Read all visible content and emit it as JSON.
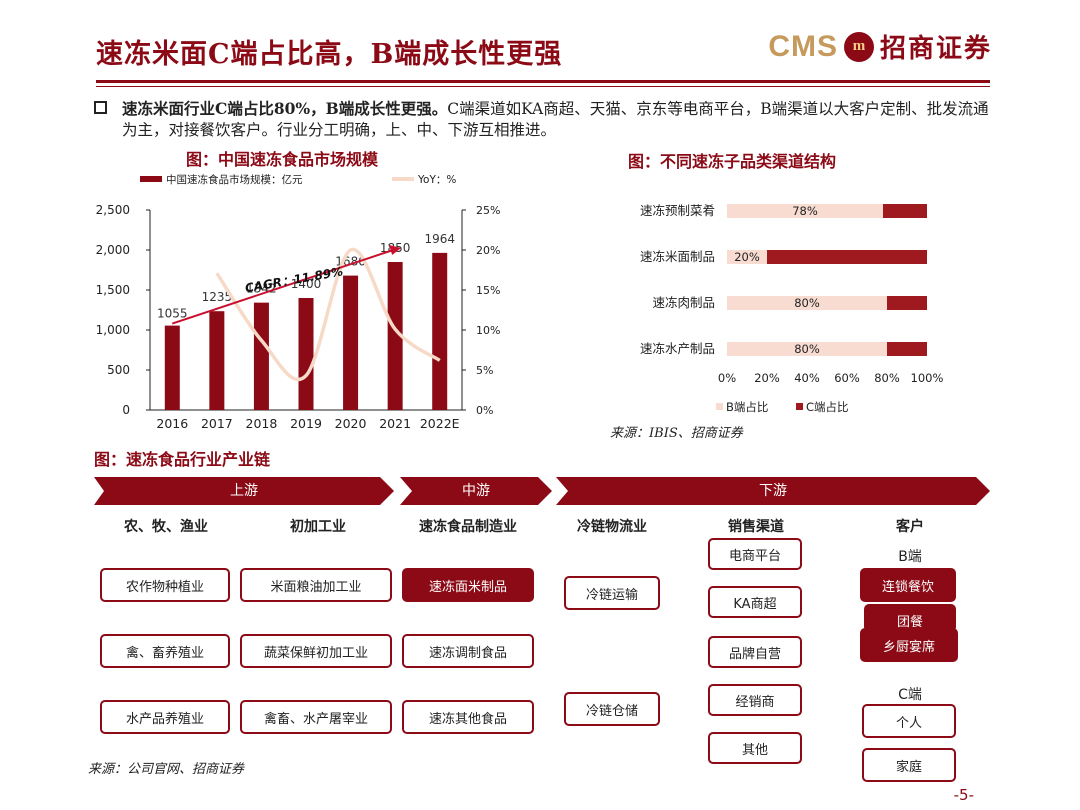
{
  "header": {
    "title": "速冻米面C端占比高，B端成长性更强",
    "logo_cms": "CMS",
    "logo_mark": "m",
    "logo_name": "招商证券"
  },
  "bullet": {
    "lead": "速冻米面行业C端占比80%，B端成长性更强。",
    "body": "C端渠道如KA商超、天猫、京东等电商平台，B端渠道以大客户定制、批发流通为主，对接餐饮客户。行业分工明确，上、中、下游互相推进。"
  },
  "figures": {
    "left_title": "图：中国速冻食品市场规模",
    "right_title": "图：不同速冻子品类渠道结构",
    "right_source": "来源：IBIS、招商证券",
    "chain_title": "图：速冻食品行业产业链",
    "chain_source": "来源：公司官网、招商证券"
  },
  "chart_data": [
    {
      "type": "bar",
      "legend": [
        "中国速冻食品市场规模：亿元",
        "YoY：%"
      ],
      "categories": [
        "2016",
        "2017",
        "2018",
        "2019",
        "2020",
        "2021",
        "2022E"
      ],
      "series": [
        {
          "name": "中国速冻食品市场规模：亿元",
          "type": "bar",
          "axis": "left",
          "values": [
            1055,
            1235,
            1342,
            1400,
            1680,
            1850,
            1964
          ]
        },
        {
          "name": "YoY：%",
          "type": "line",
          "axis": "right",
          "values": [
            null,
            17.1,
            8.7,
            4.3,
            20.0,
            10.1,
            6.2
          ]
        }
      ],
      "y_left": {
        "ticks": [
          "0",
          "500",
          "1,000",
          "1,500",
          "2,000",
          "2,500"
        ],
        "range": [
          0,
          2500
        ]
      },
      "y_right": {
        "ticks": [
          "0%",
          "5%",
          "10%",
          "15%",
          "20%",
          "25%"
        ],
        "range": [
          0,
          25
        ]
      },
      "annotation": "CAGR：11.89%",
      "colors": {
        "bar": "#8b0a16",
        "line": "#f7d9c8",
        "arrow": "#c8102e"
      }
    },
    {
      "type": "bar",
      "orientation": "horizontal-stacked",
      "categories": [
        "速冻预制菜肴",
        "速冻米面制品",
        "速冻肉制品",
        "速冻水产制品"
      ],
      "series": [
        {
          "name": "B端占比",
          "values": [
            78,
            20,
            80,
            80
          ]
        },
        {
          "name": "C端占比",
          "values": [
            22,
            80,
            20,
            20
          ]
        }
      ],
      "data_labels": [
        "78%",
        "20%",
        "80%",
        "80%"
      ],
      "x_ticks": [
        "0%",
        "20%",
        "40%",
        "60%",
        "80%",
        "100%"
      ],
      "xlim": [
        0,
        100
      ],
      "legend_position": "bottom",
      "colors": {
        "B": "#f8dcd2",
        "C": "#9e1a1e"
      }
    }
  ],
  "chain": {
    "stages": [
      "上游",
      "中游",
      "下游"
    ],
    "columns": [
      "农、牧、渔业",
      "初加工业",
      "速冻食品制造业",
      "冷链物流业",
      "销售渠道",
      "客户"
    ],
    "col1": [
      "农作物种植业",
      "禽、畜养殖业",
      "水产品养殖业"
    ],
    "col2": [
      "米面粮油加工业",
      "蔬菜保鲜初加工业",
      "禽畜、水产屠宰业"
    ],
    "col3": [
      "速冻面米制品",
      "速冻调制食品",
      "速冻其他食品"
    ],
    "col4": [
      "冷链运输",
      "冷链仓储"
    ],
    "col5": [
      "电商平台",
      "KA商超",
      "品牌自营",
      "经销商",
      "其他"
    ],
    "b_label": "B端",
    "b_items": [
      "连锁餐饮",
      "团餐",
      "乡厨宴席"
    ],
    "c_label": "C端",
    "c_items": [
      "个人",
      "家庭"
    ]
  },
  "page_number": "-5-"
}
